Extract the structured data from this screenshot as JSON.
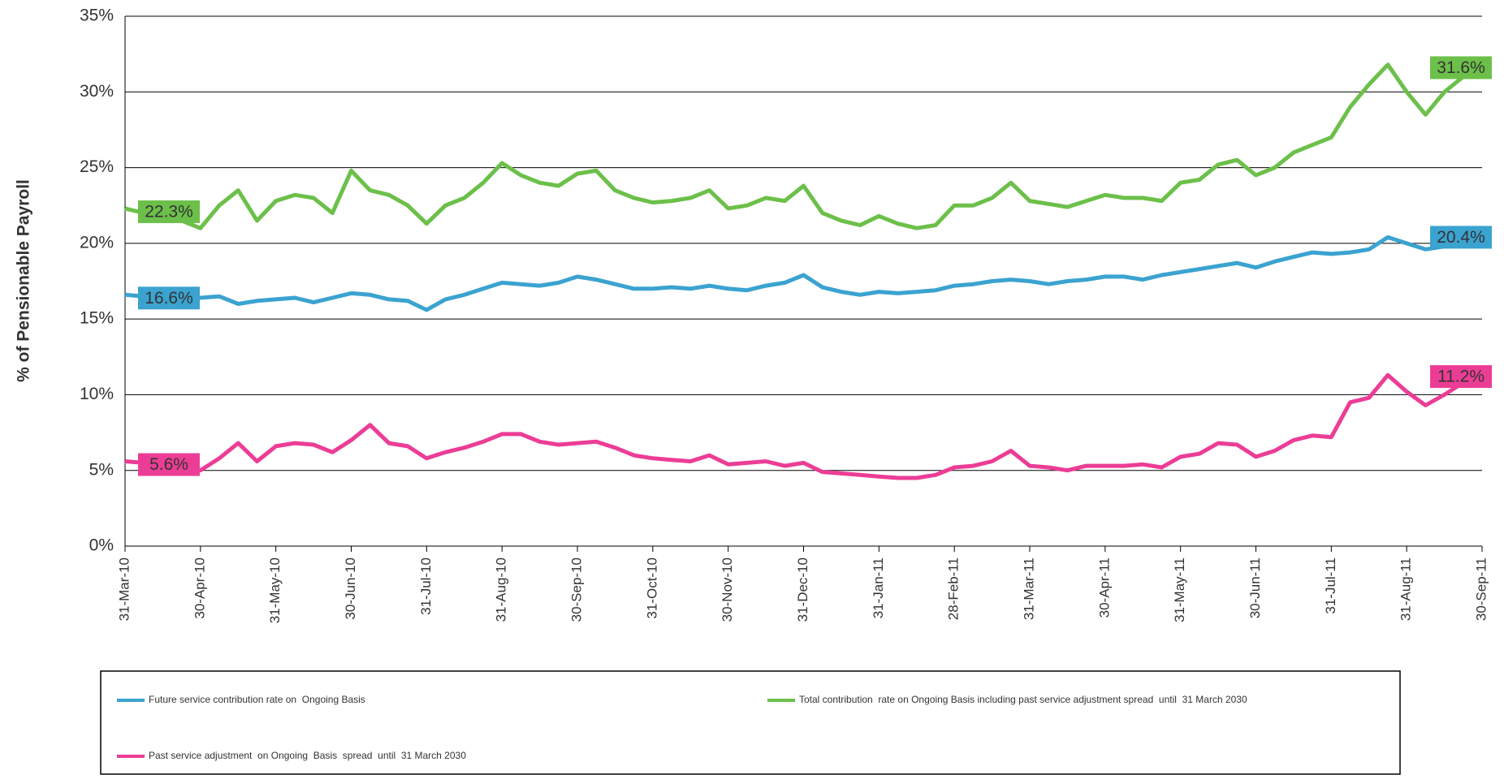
{
  "chart_data": {
    "type": "line",
    "ylabel": "% of Pensionable Payroll",
    "categories": [
      "31-Mar-10",
      null,
      null,
      null,
      "30-Apr-10",
      null,
      null,
      null,
      "31-May-10",
      null,
      null,
      null,
      "30-Jun-10",
      null,
      null,
      null,
      "31-Jul-10",
      null,
      null,
      null,
      "31-Aug-10",
      null,
      null,
      null,
      "30-Sep-10",
      null,
      null,
      null,
      "31-Oct-10",
      null,
      null,
      null,
      "30-Nov-10",
      null,
      null,
      null,
      "31-Dec-10",
      null,
      null,
      null,
      "31-Jan-11",
      null,
      null,
      null,
      "28-Feb-11",
      null,
      null,
      null,
      "31-Mar-11",
      null,
      null,
      null,
      "30-Apr-11",
      null,
      null,
      null,
      "31-May-11",
      null,
      null,
      null,
      "30-Jun-11",
      null,
      null,
      null,
      "31-Jul-11",
      null,
      null,
      null,
      "31-Aug-11",
      null,
      null,
      null,
      "30-Sep-11"
    ],
    "series": [
      {
        "name": "Future service contribution rate on  Ongoing Basis",
        "color": "#3ba3d0",
        "values": [
          16.6,
          16.5,
          16.3,
          16.2,
          16.4,
          16.5,
          16.0,
          16.2,
          16.3,
          16.4,
          16.1,
          16.4,
          16.7,
          16.6,
          16.3,
          16.2,
          15.6,
          16.3,
          16.6,
          17.0,
          17.4,
          17.3,
          17.2,
          17.4,
          17.8,
          17.6,
          17.3,
          17.0,
          17.0,
          17.1,
          17.0,
          17.2,
          17.0,
          16.9,
          17.2,
          17.4,
          17.9,
          17.1,
          16.8,
          16.6,
          16.8,
          16.7,
          16.8,
          16.9,
          17.2,
          17.3,
          17.5,
          17.6,
          17.5,
          17.3,
          17.5,
          17.6,
          17.8,
          17.8,
          17.6,
          17.9,
          18.1,
          18.3,
          18.5,
          18.7,
          18.4,
          18.8,
          19.1,
          19.4,
          19.3,
          19.4,
          19.6,
          20.4,
          20.0,
          19.6,
          19.8,
          20.2,
          20.4
        ],
        "value_labels": [
          "16.6%",
          null,
          null,
          null,
          null,
          null,
          null,
          null,
          null,
          null,
          null,
          null,
          null,
          null,
          null,
          null,
          null,
          null,
          null,
          null,
          null,
          null,
          null,
          null,
          null,
          null,
          null,
          null,
          null,
          null,
          null,
          null,
          null,
          null,
          null,
          null,
          null,
          null,
          null,
          null,
          null,
          null,
          null,
          null,
          null,
          null,
          null,
          null,
          null,
          null,
          null,
          null,
          null,
          null,
          null,
          null,
          null,
          null,
          null,
          null,
          null,
          null,
          null,
          null,
          null,
          null,
          null,
          null,
          null,
          null,
          null,
          null,
          "20.4%"
        ]
      },
      {
        "name": "Total contribution  rate on Ongoing Basis including past service adjustment spread  until  31 March 2030",
        "color": "#6cc04a",
        "values": [
          22.3,
          22.0,
          21.8,
          21.5,
          21.0,
          22.5,
          23.5,
          21.5,
          22.8,
          23.2,
          23.0,
          22.0,
          24.8,
          23.5,
          23.2,
          22.5,
          21.3,
          22.5,
          23.0,
          24.0,
          25.3,
          24.5,
          24.0,
          23.8,
          24.6,
          24.8,
          23.5,
          23.0,
          22.7,
          22.8,
          23.0,
          23.5,
          22.3,
          22.5,
          23.0,
          22.8,
          23.8,
          22.0,
          21.5,
          21.2,
          21.8,
          21.3,
          21.0,
          21.2,
          22.5,
          22.5,
          23.0,
          24.0,
          22.8,
          22.6,
          22.4,
          22.8,
          23.2,
          23.0,
          23.0,
          22.8,
          24.0,
          24.2,
          25.2,
          25.5,
          24.5,
          25.0,
          26.0,
          26.5,
          27.0,
          29.0,
          30.5,
          31.8,
          30.0,
          28.5,
          30.0,
          31.0,
          31.6
        ],
        "value_labels": [
          "22.3%",
          null,
          null,
          null,
          null,
          null,
          null,
          null,
          null,
          null,
          null,
          null,
          null,
          null,
          null,
          null,
          null,
          null,
          null,
          null,
          null,
          null,
          null,
          null,
          null,
          null,
          null,
          null,
          null,
          null,
          null,
          null,
          null,
          null,
          null,
          null,
          null,
          null,
          null,
          null,
          null,
          null,
          null,
          null,
          null,
          null,
          null,
          null,
          null,
          null,
          null,
          null,
          null,
          null,
          null,
          null,
          null,
          null,
          null,
          null,
          null,
          null,
          null,
          null,
          null,
          null,
          null,
          null,
          null,
          null,
          null,
          null,
          "31.6%"
        ]
      },
      {
        "name": "Past service adjustment  on Ongoing  Basis  spread  until  31 March 2030",
        "color": "#ec3d96",
        "values": [
          5.6,
          5.5,
          5.3,
          5.2,
          5.0,
          5.8,
          6.8,
          5.6,
          6.6,
          6.8,
          6.7,
          6.2,
          7.0,
          8.0,
          6.8,
          6.6,
          5.8,
          6.2,
          6.5,
          6.9,
          7.4,
          7.4,
          6.9,
          6.7,
          6.8,
          6.9,
          6.5,
          6.0,
          5.8,
          5.7,
          5.6,
          6.0,
          5.4,
          5.5,
          5.6,
          5.3,
          5.5,
          4.9,
          4.8,
          4.7,
          4.6,
          4.5,
          4.5,
          4.7,
          5.2,
          5.3,
          5.6,
          6.3,
          5.3,
          5.2,
          5.0,
          5.3,
          5.3,
          5.3,
          5.4,
          5.2,
          5.9,
          6.1,
          6.8,
          6.7,
          5.9,
          6.3,
          7.0,
          7.3,
          7.2,
          9.5,
          9.8,
          11.3,
          10.2,
          9.3,
          10.0,
          10.8,
          11.2
        ],
        "value_labels": [
          "5.6%",
          null,
          null,
          null,
          null,
          null,
          null,
          null,
          null,
          null,
          null,
          null,
          null,
          null,
          null,
          null,
          null,
          null,
          null,
          null,
          null,
          null,
          null,
          null,
          null,
          null,
          null,
          null,
          null,
          null,
          null,
          null,
          null,
          null,
          null,
          null,
          null,
          null,
          null,
          null,
          null,
          null,
          null,
          null,
          null,
          null,
          null,
          null,
          null,
          null,
          null,
          null,
          null,
          null,
          null,
          null,
          null,
          null,
          null,
          null,
          null,
          null,
          null,
          null,
          null,
          null,
          null,
          null,
          null,
          null,
          null,
          null,
          "11.2%"
        ]
      }
    ],
    "ylim": [
      0,
      35
    ],
    "yticks": [
      {
        "value": 0,
        "label": "0%"
      },
      {
        "value": 5,
        "label": "5%"
      },
      {
        "value": 10,
        "label": "10%"
      },
      {
        "value": 15,
        "label": "15%"
      },
      {
        "value": 20,
        "label": "20%"
      },
      {
        "value": 25,
        "label": "25%"
      },
      {
        "value": 30,
        "label": "30%"
      },
      {
        "value": 35,
        "label": "35%"
      }
    ],
    "grid": true
  }
}
